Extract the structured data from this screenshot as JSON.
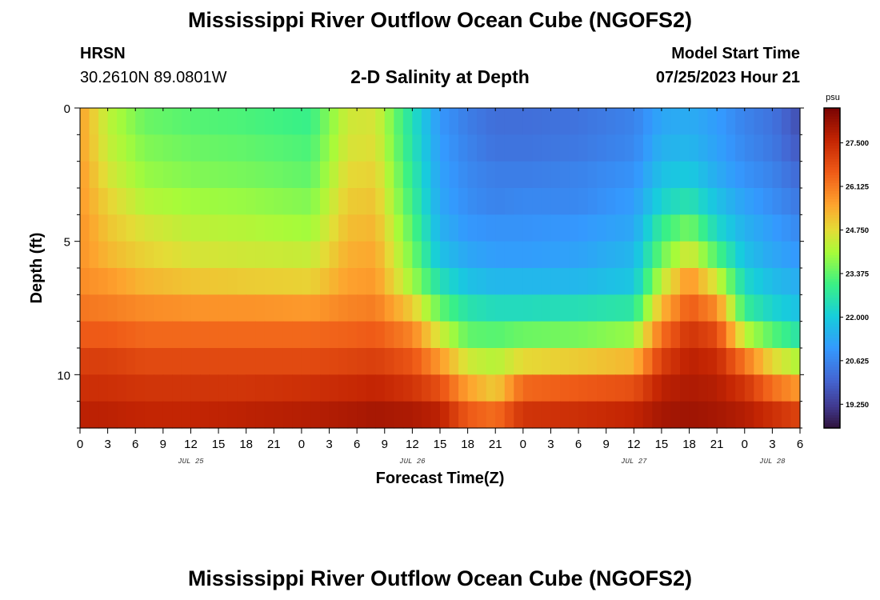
{
  "header": {
    "title": "Mississippi River Outflow Ocean Cube (NGOFS2)",
    "station_name": "HRSN",
    "station_coords": "30.2610N  89.0801W",
    "subtitle": "2-D Salinity at Depth",
    "model_start_label": "Model Start Time",
    "model_start_value": "07/25/2023 Hour 21"
  },
  "footer": {
    "title": "Mississippi River Outflow Ocean Cube (NGOFS2)"
  },
  "chart_data": {
    "type": "heatmap",
    "variable": "Salinity",
    "xlabel": "Forecast Time(Z)",
    "ylabel": "Depth (ft)",
    "x_range_hours": [
      0,
      78
    ],
    "x_ticks": [
      {
        "h": 0,
        "label": "0"
      },
      {
        "h": 3,
        "label": "3"
      },
      {
        "h": 6,
        "label": "6"
      },
      {
        "h": 9,
        "label": "9"
      },
      {
        "h": 12,
        "label": "12"
      },
      {
        "h": 15,
        "label": "15"
      },
      {
        "h": 18,
        "label": "18"
      },
      {
        "h": 21,
        "label": "21"
      },
      {
        "h": 24,
        "label": "0"
      },
      {
        "h": 27,
        "label": "3"
      },
      {
        "h": 30,
        "label": "6"
      },
      {
        "h": 33,
        "label": "9"
      },
      {
        "h": 36,
        "label": "12"
      },
      {
        "h": 39,
        "label": "15"
      },
      {
        "h": 42,
        "label": "18"
      },
      {
        "h": 45,
        "label": "21"
      },
      {
        "h": 48,
        "label": "0"
      },
      {
        "h": 51,
        "label": "3"
      },
      {
        "h": 54,
        "label": "6"
      },
      {
        "h": 57,
        "label": "9"
      },
      {
        "h": 60,
        "label": "12"
      },
      {
        "h": 63,
        "label": "15"
      },
      {
        "h": 66,
        "label": "18"
      },
      {
        "h": 69,
        "label": "21"
      },
      {
        "h": 72,
        "label": "0"
      },
      {
        "h": 75,
        "label": "3"
      },
      {
        "h": 78,
        "label": "6"
      }
    ],
    "date_labels": [
      {
        "h": 12,
        "label": "JUL 25"
      },
      {
        "h": 36,
        "label": "JUL 26"
      },
      {
        "h": 60,
        "label": "JUL 27"
      },
      {
        "h": 75,
        "label": "JUL 28"
      }
    ],
    "y_range_ft": [
      0,
      12
    ],
    "y_major_ticks": [
      0,
      5,
      10
    ],
    "depth_layers_ft": [
      0,
      1,
      2,
      3,
      4,
      5,
      6,
      7,
      8,
      9,
      10,
      11,
      12
    ],
    "colorbar": {
      "unit": "psu",
      "range": [
        18.5,
        28.6
      ],
      "ticks": [
        19.25,
        20.625,
        22.0,
        23.375,
        24.75,
        26.125,
        27.5
      ],
      "tick_labels": [
        "19.250",
        "20.625",
        "22.000",
        "23.375",
        "24.750",
        "26.125",
        "27.500"
      ]
    },
    "salinity_keyframes": [
      {
        "h": 0,
        "layers": [
          25.6,
          25.6,
          25.7,
          25.7,
          25.8,
          25.8,
          25.9,
          26.2,
          26.6,
          27.1,
          27.4,
          27.7
        ]
      },
      {
        "h": 3,
        "layers": [
          24.3,
          24.4,
          24.6,
          24.9,
          25.1,
          25.3,
          25.7,
          26.1,
          26.6,
          27.1,
          27.4,
          27.7
        ]
      },
      {
        "h": 7,
        "layers": [
          23.5,
          23.7,
          23.9,
          24.2,
          24.6,
          24.9,
          25.3,
          25.9,
          26.4,
          26.9,
          27.3,
          27.6
        ]
      },
      {
        "h": 12,
        "layers": [
          23.3,
          23.5,
          23.7,
          24.0,
          24.3,
          24.6,
          25.1,
          25.8,
          26.4,
          26.9,
          27.3,
          27.6
        ]
      },
      {
        "h": 18,
        "layers": [
          23.2,
          23.4,
          23.6,
          23.9,
          24.2,
          24.5,
          25.0,
          25.8,
          26.4,
          26.9,
          27.3,
          27.7
        ]
      },
      {
        "h": 25,
        "layers": [
          23.0,
          23.2,
          23.4,
          23.7,
          24.0,
          24.4,
          24.9,
          25.7,
          26.4,
          26.9,
          27.4,
          27.8
        ]
      },
      {
        "h": 29,
        "layers": [
          24.5,
          24.6,
          24.8,
          25.0,
          25.2,
          25.4,
          25.6,
          26.0,
          26.5,
          27.0,
          27.5,
          27.9
        ]
      },
      {
        "h": 32,
        "layers": [
          24.6,
          24.7,
          24.9,
          25.1,
          25.3,
          25.5,
          25.7,
          26.1,
          26.6,
          27.1,
          27.6,
          28.0
        ]
      },
      {
        "h": 36,
        "layers": [
          22.5,
          22.6,
          22.8,
          23.0,
          23.3,
          23.6,
          24.0,
          25.0,
          26.0,
          26.7,
          27.3,
          27.9
        ]
      },
      {
        "h": 39,
        "layers": [
          21.0,
          21.1,
          21.2,
          21.3,
          21.5,
          21.8,
          22.5,
          23.4,
          24.5,
          25.7,
          26.8,
          27.7
        ]
      },
      {
        "h": 42,
        "layers": [
          20.5,
          20.6,
          20.7,
          20.8,
          21.0,
          21.3,
          21.8,
          22.6,
          23.4,
          24.5,
          25.6,
          26.6
        ]
      },
      {
        "h": 45,
        "layers": [
          20.2,
          20.3,
          20.5,
          20.6,
          20.9,
          21.1,
          21.6,
          22.4,
          23.3,
          24.2,
          25.0,
          26.3
        ]
      },
      {
        "h": 48,
        "layers": [
          20.2,
          20.3,
          20.5,
          20.7,
          20.9,
          21.1,
          21.6,
          22.4,
          23.5,
          24.8,
          26.4,
          27.3
        ]
      },
      {
        "h": 54,
        "layers": [
          20.3,
          20.4,
          20.6,
          20.7,
          21.0,
          21.2,
          21.6,
          22.5,
          23.6,
          25.0,
          26.6,
          27.4
        ]
      },
      {
        "h": 60,
        "layers": [
          20.6,
          20.7,
          20.9,
          21.1,
          21.3,
          21.6,
          21.9,
          22.7,
          23.9,
          25.3,
          26.8,
          27.6
        ]
      },
      {
        "h": 63,
        "layers": [
          21.3,
          21.5,
          21.8,
          22.2,
          22.9,
          23.5,
          24.3,
          25.3,
          26.3,
          27.1,
          27.7,
          28.0
        ]
      },
      {
        "h": 66,
        "layers": [
          21.4,
          21.6,
          22.0,
          22.6,
          23.6,
          24.6,
          25.8,
          26.6,
          27.3,
          27.7,
          27.9,
          28.1
        ]
      },
      {
        "h": 69,
        "layers": [
          21.1,
          21.2,
          21.4,
          21.8,
          22.3,
          23.2,
          24.5,
          25.9,
          26.9,
          27.5,
          27.8,
          28.0
        ]
      },
      {
        "h": 72,
        "layers": [
          20.6,
          20.7,
          20.9,
          21.2,
          21.5,
          21.8,
          22.3,
          22.9,
          24.3,
          26.2,
          27.3,
          27.8
        ]
      },
      {
        "h": 75,
        "layers": [
          20.3,
          20.4,
          20.6,
          20.8,
          21.1,
          21.3,
          21.7,
          22.2,
          23.3,
          24.8,
          26.3,
          27.4
        ]
      },
      {
        "h": 78,
        "layers": [
          19.6,
          19.8,
          20.1,
          20.4,
          20.7,
          21.0,
          21.4,
          21.8,
          22.6,
          24.1,
          25.7,
          27.0
        ]
      }
    ]
  }
}
